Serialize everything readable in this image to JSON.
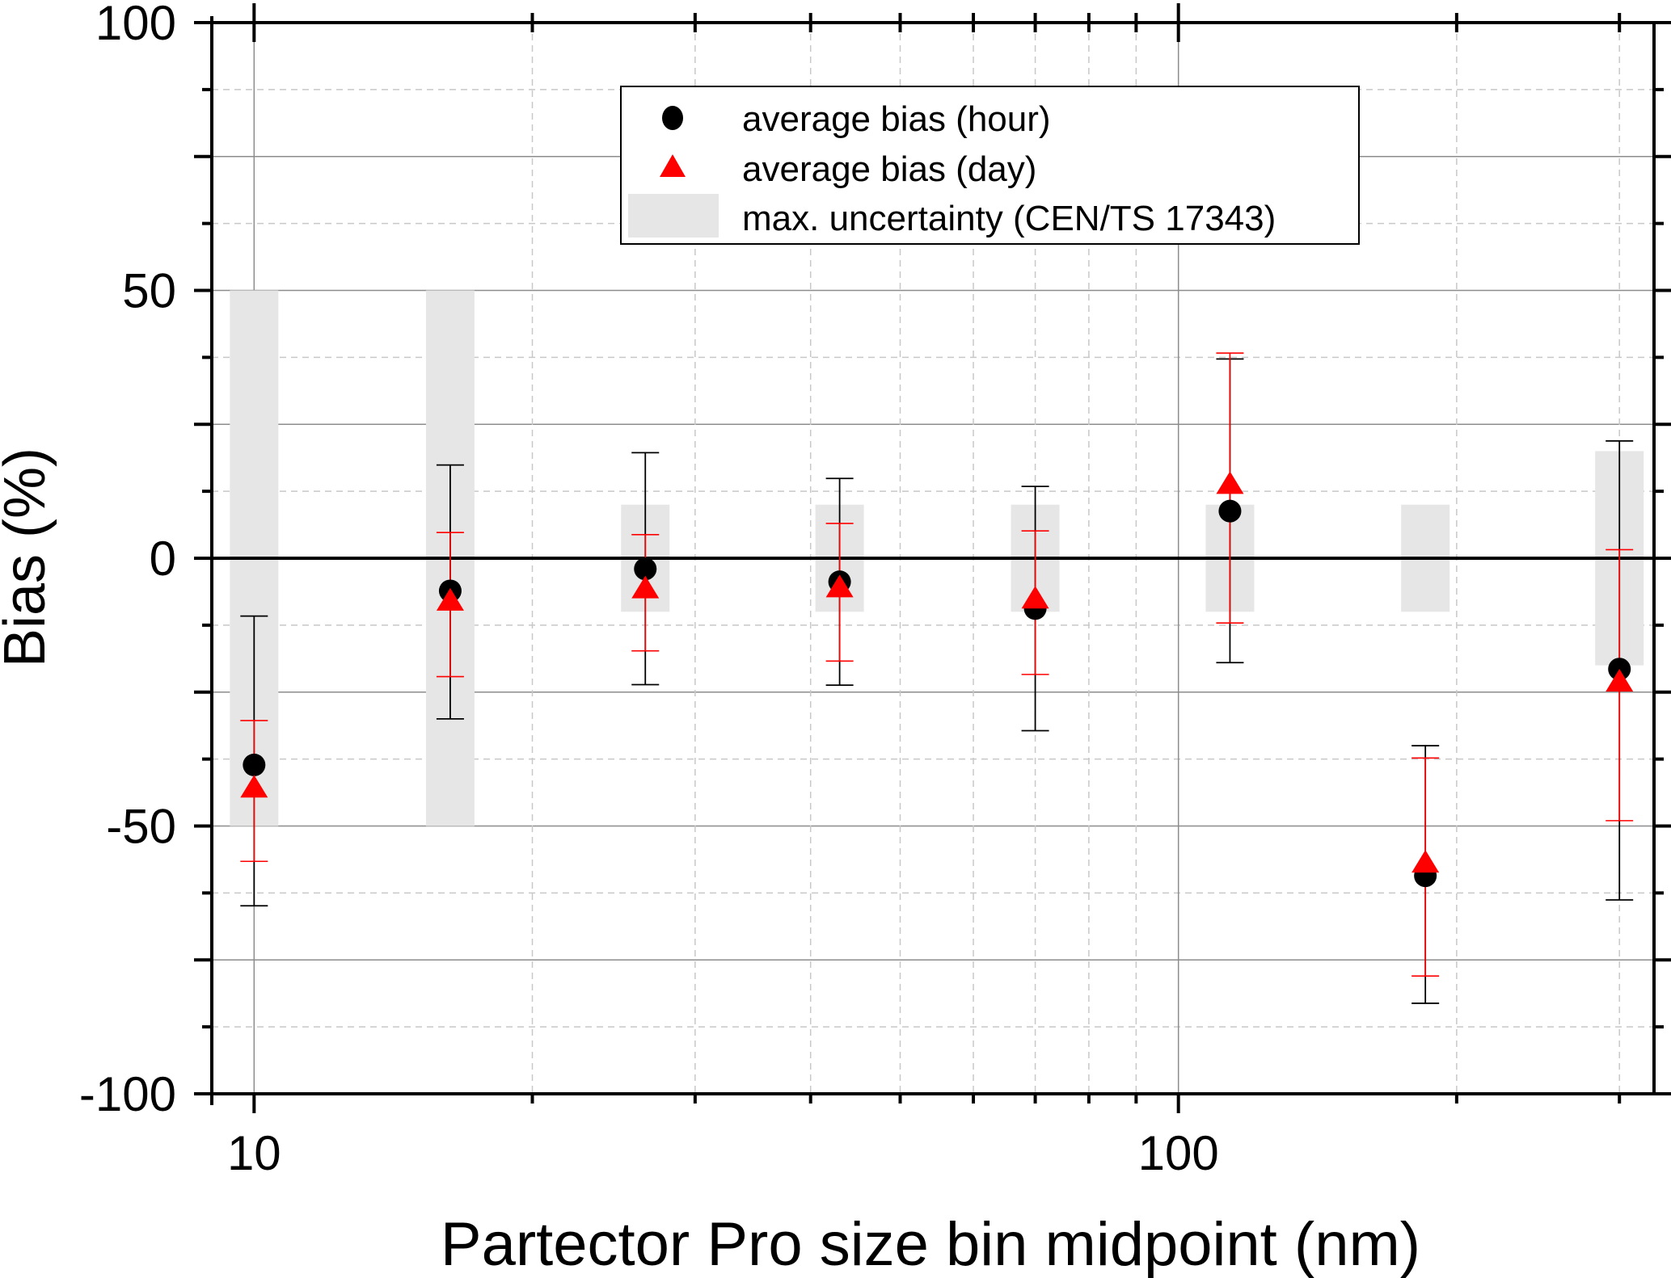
{
  "chart_data": {
    "type": "scatter",
    "title": "",
    "xlabel": "Partector Pro size bin midpoint (nm)",
    "ylabel": "Bias (%)",
    "xscale": "log",
    "xlim": [
      9.0,
      327
    ],
    "ylim": [
      -100,
      100
    ],
    "x_ticks": [
      10,
      100
    ],
    "x_tick_labels": [
      "10",
      "100"
    ],
    "x_minor_ticks": [
      20,
      30,
      40,
      50,
      60,
      70,
      80,
      90,
      200,
      300
    ],
    "y_ticks": [
      -100,
      -50,
      0,
      50,
      100
    ],
    "y_tick_labels": [
      "-100",
      "-50",
      "0",
      "50",
      "100"
    ],
    "y_minor_ticks": [
      -87.5,
      -75,
      -62.5,
      -37.5,
      -25,
      -12.5,
      12.5,
      25,
      37.5,
      62.5,
      75,
      87.5
    ],
    "grid": true,
    "legend_position": "top-center",
    "x": [
      10,
      16.3,
      26.5,
      43,
      70,
      113.7,
      185,
      300
    ],
    "series": [
      {
        "name": "average bias (hour)",
        "marker": "circle",
        "color": "#000000",
        "values": [
          -38.6,
          -6.1,
          -2.0,
          -4.4,
          -9.4,
          8.8,
          -59.3,
          -20.7
        ],
        "error_upper": [
          -10.8,
          17.4,
          19.7,
          14.9,
          13.4,
          37.2,
          -35.0,
          21.9
        ],
        "error_lower": [
          -64.9,
          -30.0,
          -23.6,
          -23.7,
          -32.2,
          -19.5,
          -83.1,
          -63.8
        ]
      },
      {
        "name": "average bias (day)",
        "marker": "triangle",
        "color": "#ff0000",
        "values": [
          -43.0,
          -8.1,
          -5.8,
          -5.6,
          -7.7,
          13.7,
          -57.0,
          -23.2
        ],
        "error_upper": [
          -30.3,
          4.8,
          4.4,
          6.5,
          5.1,
          38.3,
          -37.3,
          1.6
        ],
        "error_lower": [
          -56.6,
          -22.1,
          -17.3,
          -19.2,
          -21.7,
          -12.1,
          -78.0,
          -49.0
        ]
      },
      {
        "name": "max. uncertainty (CEN/TS 17343)",
        "marker": "band",
        "color": "#e6e6e6",
        "upper": [
          50,
          50,
          10,
          10,
          10,
          10,
          10,
          20
        ],
        "lower": [
          -50,
          -50,
          -10,
          -10,
          -10,
          -10,
          -10,
          -20
        ]
      }
    ],
    "legend": [
      {
        "label": "average bias (hour)",
        "symbol": "circle",
        "color": "#000000"
      },
      {
        "label": "average bias (day)",
        "symbol": "triangle",
        "color": "#ff0000"
      },
      {
        "label": "max. uncertainty (CEN/TS 17343)",
        "symbol": "rect",
        "color": "#e6e6e6"
      }
    ]
  }
}
